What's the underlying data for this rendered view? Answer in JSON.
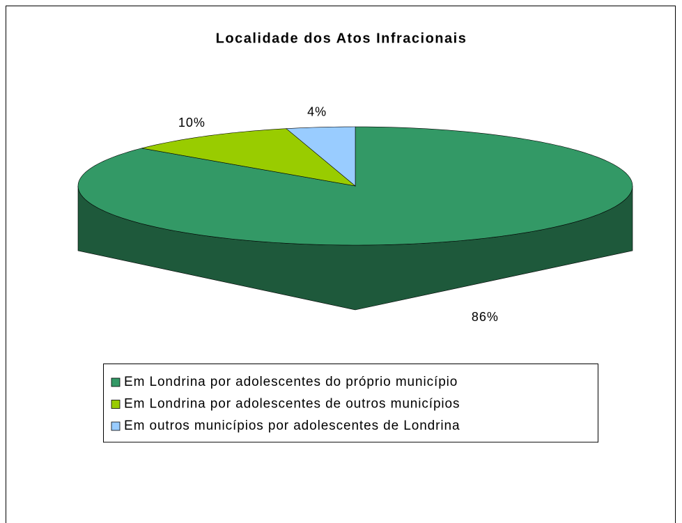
{
  "chart_data": {
    "type": "pie",
    "title": "Localidade dos Atos Infracionais",
    "series": [
      {
        "name": "Em Londrina por adolescentes do próprio município",
        "color": "#339966",
        "values": [
          86
        ],
        "value_labels": [
          "86%"
        ]
      },
      {
        "name": "Em Londrina por adolescentes de outros municípios",
        "color": "#99cc00",
        "values": [
          10
        ],
        "value_labels": [
          "10%"
        ]
      },
      {
        "name": "Em outros municípios por adolescentes de Londrina",
        "color": "#99ccff",
        "values": [
          4
        ],
        "value_labels": [
          "4%"
        ]
      }
    ],
    "legend": "bottom"
  }
}
